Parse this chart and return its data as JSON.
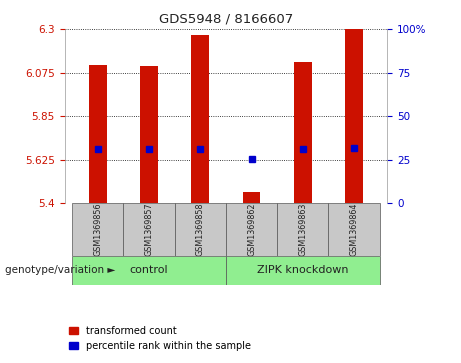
{
  "title": "GDS5948 / 8166607",
  "samples": [
    "GSM1369856",
    "GSM1369857",
    "GSM1369858",
    "GSM1369862",
    "GSM1369863",
    "GSM1369864"
  ],
  "bar_values": [
    6.115,
    6.11,
    6.27,
    5.46,
    6.13,
    6.3
  ],
  "percentile_values": [
    5.682,
    5.682,
    5.682,
    5.628,
    5.682,
    5.685
  ],
  "ymin": 5.4,
  "ymax": 6.3,
  "yticks_left": [
    5.4,
    5.625,
    5.85,
    6.075,
    6.3
  ],
  "yticks_right": [
    0,
    25,
    50,
    75,
    100
  ],
  "bar_color": "#CC1100",
  "marker_color": "#0000CC",
  "grid_color": "#000000",
  "group_labels": [
    "control",
    "ZIPK knockdown"
  ],
  "group_color": "#90EE90",
  "sample_box_bg": "#C8C8C8",
  "bar_width": 0.35,
  "legend_items": [
    {
      "label": "transformed count",
      "color": "#CC1100"
    },
    {
      "label": "percentile rank within the sample",
      "color": "#0000CC"
    }
  ]
}
